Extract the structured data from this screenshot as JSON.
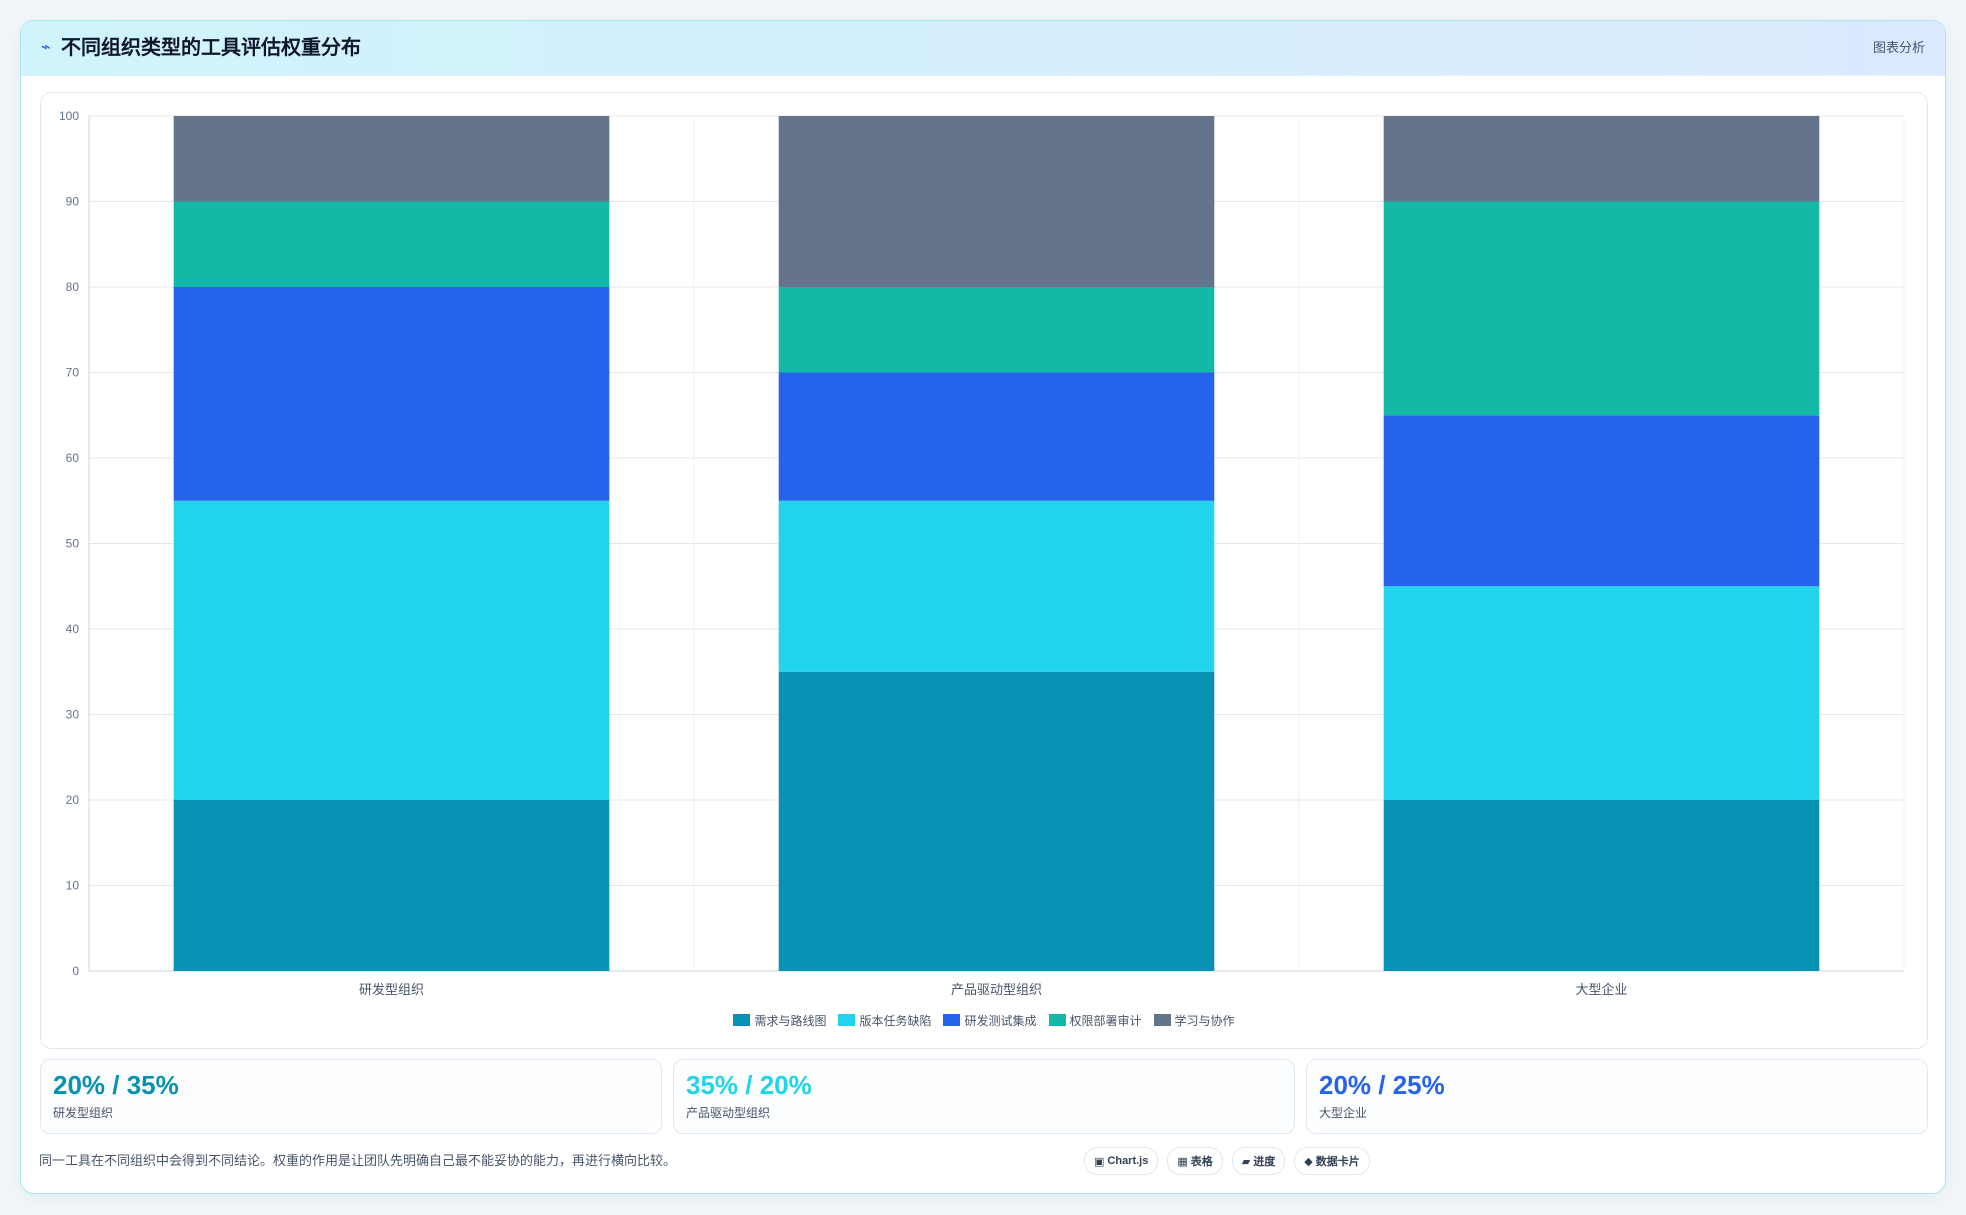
{
  "header": {
    "logo_icon": "bolt-icon",
    "title": "不同组织类型的工具评估权重分布",
    "tag": "图表分析"
  },
  "chart_data": {
    "type": "bar",
    "stacked": true,
    "categories": [
      "研发型组织",
      "产品驱动型组织",
      "大型企业"
    ],
    "series": [
      {
        "name": "需求与路线图",
        "color": "#0891b2",
        "values": [
          20,
          35,
          20
        ]
      },
      {
        "name": "版本任务缺陷",
        "color": "#22d3ee",
        "values": [
          35,
          20,
          25
        ]
      },
      {
        "name": "研发测试集成",
        "color": "#2563eb",
        "values": [
          25,
          15,
          20
        ]
      },
      {
        "name": "权限部署审计",
        "color": "#14b8a6",
        "values": [
          10,
          10,
          25
        ]
      },
      {
        "name": "学习与协作",
        "color": "#64748b",
        "values": [
          10,
          20,
          10
        ]
      }
    ],
    "ylim": [
      0,
      100
    ],
    "yticks": [
      0,
      10,
      20,
      30,
      40,
      50,
      60,
      70,
      80,
      90,
      100
    ],
    "grid": true,
    "legend": "bottom"
  },
  "stats": [
    {
      "value": "20% / 35%",
      "label": "研发型组织",
      "color": "#0891b2"
    },
    {
      "value": "35% / 20%",
      "label": "产品驱动型组织",
      "color": "#22d3ee"
    },
    {
      "value": "20% / 25%",
      "label": "大型企业",
      "color": "#2563eb"
    }
  ],
  "footnote": "同一工具在不同组织中会得到不同结论。权重的作用是让团队先明确自己最不能妥协的能力，再进行横向比较。",
  "badges": [
    {
      "icon": "▣",
      "label": "Chart.js"
    },
    {
      "icon": "▦",
      "label": "表格"
    },
    {
      "icon": "▰",
      "label": "进度"
    },
    {
      "icon": "◆",
      "label": "数据卡片"
    }
  ]
}
